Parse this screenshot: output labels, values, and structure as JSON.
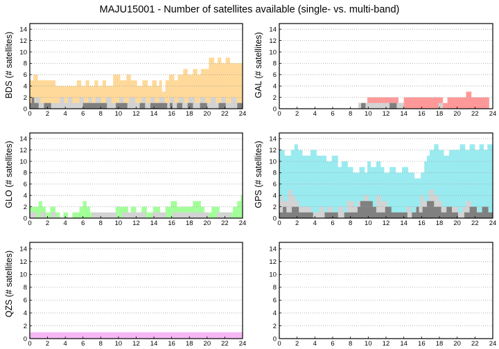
{
  "title": "MAJU15001 - Number of satellites available (single- vs. multi-band)",
  "chart_data": [
    {
      "id": "bds",
      "type": "area",
      "ylabel": "BDS (# satellites)",
      "xlim": [
        0,
        24
      ],
      "ylim": [
        0,
        15
      ],
      "x_ticks": [
        0,
        2,
        4,
        6,
        8,
        10,
        12,
        14,
        16,
        18,
        20,
        22,
        24
      ],
      "y_ticks": [
        0,
        2,
        4,
        6,
        8,
        10,
        12,
        14
      ],
      "grid": true,
      "colors": {
        "total": "#ffd999",
        "multi_band": "#d3d3d3",
        "single_band": "#808080"
      },
      "series": [
        {
          "key": "total",
          "x": [
            0,
            0.4,
            0.9,
            1.6,
            2.9,
            3.5,
            4.8,
            5.3,
            5.8,
            6.3,
            6.7,
            7.3,
            7.7,
            8.2,
            8.6,
            9.4,
            10.2,
            10.9,
            11.4,
            12.1,
            12.7,
            13.3,
            13.8,
            14.3,
            14.6,
            14.9,
            15.3,
            15.7,
            16.3,
            16.7,
            17.3,
            17.8,
            18.4,
            18.9,
            19.3,
            19.8,
            20.2,
            20.8,
            21.2,
            21.6,
            22.1,
            22.6,
            23.0,
            24
          ],
          "y": [
            5,
            6,
            5,
            5,
            4,
            4,
            4,
            5,
            4,
            5,
            4,
            5,
            4,
            5,
            4,
            6,
            5,
            6,
            5,
            4,
            5,
            4,
            5,
            4,
            5,
            3,
            5,
            6,
            5,
            6,
            7,
            6,
            7,
            6,
            7,
            7,
            9,
            8,
            9,
            8,
            9,
            8,
            8,
            8
          ]
        },
        {
          "key": "multi_band",
          "x": [
            0,
            0.6,
            1.2,
            2.0,
            3.4,
            3.9,
            4.3,
            4.8,
            5.6,
            6.1,
            6.6,
            7.0,
            7.4,
            8.0,
            8.6,
            9.2,
            10.1,
            10.6,
            11.2,
            11.9,
            12.6,
            13.1,
            13.6,
            14.1,
            14.6,
            15.2,
            15.8,
            16.3,
            16.8,
            17.4,
            17.9,
            18.6,
            19.2,
            19.8,
            20.4,
            21.0,
            21.6,
            22.1,
            22.7,
            23.3,
            24
          ],
          "y": [
            1,
            2,
            1,
            1,
            2,
            1,
            2,
            1,
            2,
            1,
            2,
            1,
            2,
            1,
            2,
            1,
            2,
            1,
            2,
            1,
            2,
            1,
            2,
            1,
            2,
            1,
            2,
            1,
            2,
            1,
            2,
            1,
            2,
            1,
            2,
            1,
            2,
            1,
            2,
            1,
            1
          ]
        },
        {
          "key": "single_band",
          "x": [
            0,
            0.2,
            0.5,
            1.0,
            1.6,
            2.4,
            4.6,
            6.0,
            8.7,
            9.7,
            11.0,
            12.4,
            13.0,
            13.6,
            15.5,
            15.8,
            16.1,
            16.6,
            17.2,
            17.8,
            18.4,
            19.2,
            20.0,
            21.3,
            22.1,
            23.4,
            24
          ],
          "y": [
            1,
            2,
            1,
            0,
            1,
            0,
            0,
            1,
            0,
            1,
            0,
            1,
            0,
            1,
            0,
            1,
            0,
            1,
            0,
            1,
            0,
            1,
            0,
            1,
            0,
            1,
            1
          ]
        }
      ]
    },
    {
      "id": "gal",
      "type": "area",
      "ylabel": "GAL (# satellites)",
      "xlim": [
        0,
        24
      ],
      "ylim": [
        0,
        15
      ],
      "x_ticks": [
        0,
        2,
        4,
        6,
        8,
        10,
        12,
        14,
        16,
        18,
        20,
        22,
        24
      ],
      "y_ticks": [
        0,
        2,
        4,
        6,
        8,
        10,
        12,
        14
      ],
      "grid": true,
      "colors": {
        "total": "#ff9999",
        "multi_band": "#d3d3d3",
        "single_band": "#808080"
      },
      "series": [
        {
          "key": "total",
          "x": [
            8.9,
            9.3,
            9.9,
            13.4,
            14.0,
            18.4,
            18.9,
            21.0,
            21.6,
            23.6
          ],
          "y": [
            1,
            1,
            2,
            1,
            2,
            1,
            2,
            3,
            2,
            0
          ]
        },
        {
          "key": "multi_band",
          "x": [
            8.9,
            9.5,
            13.4,
            14.0,
            17.9,
            18.4,
            18.9,
            23.6
          ],
          "y": [
            1,
            1,
            1,
            0,
            1,
            0,
            0,
            0
          ]
        },
        {
          "key": "single_band",
          "x": [
            9.2,
            9.7,
            12.4,
            13.2,
            23.6
          ],
          "y": [
            1,
            0,
            1,
            0,
            0
          ]
        }
      ]
    },
    {
      "id": "glo",
      "type": "area",
      "ylabel": "GLO (# satellites)",
      "xlim": [
        0,
        24
      ],
      "ylim": [
        0,
        15
      ],
      "x_ticks": [
        0,
        2,
        4,
        6,
        8,
        10,
        12,
        14,
        16,
        18,
        20,
        22,
        24
      ],
      "y_ticks": [
        0,
        2,
        4,
        6,
        8,
        10,
        12,
        14
      ],
      "grid": true,
      "colors": {
        "total": "#a3ff99",
        "multi_band": "#d3d3d3",
        "single_band": "#808080"
      },
      "series": [
        {
          "key": "total",
          "x": [
            0,
            1.0,
            1.4,
            1.8,
            2.3,
            2.9,
            3.4,
            3.8,
            4.3,
            4.8,
            5.6,
            6.0,
            6.4,
            6.8,
            7.5,
            8.2,
            8.6,
            9.7,
            11.1,
            11.4,
            12.0,
            12.6,
            13.2,
            13.9,
            14.7,
            15.3,
            15.9,
            16.6,
            18.4,
            19.3,
            19.7,
            20.5,
            21.4,
            22.9,
            23.4,
            23.8,
            24
          ],
          "y": [
            2,
            3,
            2,
            1,
            2,
            1,
            0,
            1,
            0,
            1,
            2,
            3,
            2,
            1,
            0,
            1,
            0,
            2,
            1,
            2,
            1,
            2,
            1,
            2,
            1,
            2,
            3,
            2,
            3,
            2,
            1,
            2,
            1,
            2,
            3,
            4,
            3
          ]
        },
        {
          "key": "multi_band",
          "x": [
            0,
            0.8,
            1.2,
            1.8,
            2.4,
            3.0,
            3.6,
            6.4,
            7.0,
            9.8,
            10.4,
            13.1,
            13.8,
            15.4,
            16.1,
            20.2,
            21.1,
            22.7,
            24
          ],
          "y": [
            1,
            0,
            1,
            0,
            1,
            0,
            0,
            0,
            1,
            0,
            1,
            0,
            1,
            0,
            1,
            0,
            1,
            0,
            0
          ]
        },
        {
          "key": "single_band",
          "x": [
            0
          ],
          "y": [
            0
          ]
        }
      ]
    },
    {
      "id": "gps",
      "type": "area",
      "ylabel": "GPS (# satellites)",
      "xlim": [
        0,
        24
      ],
      "ylim": [
        0,
        15
      ],
      "x_ticks": [
        0,
        2,
        4,
        6,
        8,
        10,
        12,
        14,
        16,
        18,
        20,
        22,
        24
      ],
      "y_ticks": [
        0,
        2,
        4,
        6,
        8,
        10,
        12,
        14
      ],
      "grid": true,
      "colors": {
        "total": "#99ebf0",
        "multi_band": "#d3d3d3",
        "single_band": "#808080"
      },
      "series": [
        {
          "key": "total",
          "x": [
            0,
            0.6,
            1.3,
            1.7,
            2.1,
            2.6,
            3.5,
            4.2,
            4.8,
            5.3,
            5.9,
            6.6,
            7.0,
            7.7,
            8.3,
            9.0,
            9.6,
            9.9,
            10.3,
            10.9,
            11.4,
            11.8,
            12.4,
            13.1,
            13.8,
            14.5,
            15.2,
            15.9,
            16.3,
            16.6,
            16.9,
            17.4,
            17.9,
            18.5,
            19.1,
            19.8,
            20.3,
            20.9,
            21.4,
            22.0,
            22.5,
            23.0,
            23.4,
            24
          ],
          "y": [
            12,
            11,
            12,
            13,
            12,
            11,
            12,
            11,
            11,
            10,
            11,
            9,
            10,
            9,
            8,
            9,
            8,
            10,
            9,
            10,
            9,
            8,
            9,
            8,
            9,
            8,
            7,
            8,
            10,
            11,
            12,
            13,
            12,
            11,
            12,
            12,
            13,
            12,
            13,
            12,
            13,
            12,
            13,
            13
          ]
        },
        {
          "key": "multi_band",
          "x": [
            0,
            0.2,
            0.5,
            1.0,
            1.4,
            1.8,
            2.2,
            3.6,
            4.5,
            5.0,
            5.4,
            6.0,
            6.6,
            7.2,
            7.6,
            8.4,
            8.8,
            9.5,
            10.0,
            10.4,
            10.9,
            11.4,
            12.1,
            12.6,
            13.4,
            14.3,
            14.8,
            15.3,
            15.8,
            16.2,
            16.8,
            17.4,
            17.9,
            18.3,
            18.8,
            19.4,
            20.1,
            20.6,
            21.0,
            21.6,
            22.3,
            22.9,
            23.4,
            24
          ],
          "y": [
            3,
            4,
            3,
            5,
            4,
            3,
            2,
            1,
            2,
            1,
            2,
            1,
            2,
            1,
            3,
            2,
            3,
            4,
            3,
            2,
            4,
            3,
            2,
            1,
            1,
            2,
            1,
            2,
            4,
            3,
            5,
            4,
            3,
            2,
            1,
            2,
            1,
            2,
            3,
            2,
            1,
            2,
            1,
            1
          ]
        },
        {
          "key": "single_band",
          "x": [
            0,
            0.4,
            0.8,
            1.4,
            2.2,
            3.8,
            5.1,
            6.6,
            7.3,
            8.8,
            9.1,
            10.5,
            10.9,
            11.9,
            12.6,
            14.4,
            14.9,
            15.4,
            15.7,
            16.1,
            16.6,
            17.4,
            18.2,
            18.8,
            19.4,
            20.1,
            20.8,
            21.4,
            22.2,
            22.8,
            23.5,
            24
          ],
          "y": [
            1,
            2,
            1,
            2,
            1,
            0,
            1,
            0,
            1,
            2,
            3,
            2,
            1,
            2,
            1,
            0,
            1,
            2,
            1,
            2,
            3,
            2,
            1,
            2,
            1,
            0,
            1,
            2,
            1,
            2,
            1,
            1
          ]
        }
      ]
    },
    {
      "id": "qzs",
      "type": "area",
      "ylabel": "QZS (# satellites)",
      "xlim": [
        0,
        24
      ],
      "ylim": [
        0,
        15
      ],
      "x_ticks": [
        0,
        2,
        4,
        6,
        8,
        10,
        12,
        14,
        16,
        18,
        20,
        22,
        24
      ],
      "y_ticks": [
        0,
        2,
        4,
        6,
        8,
        10,
        12,
        14
      ],
      "grid": true,
      "colors": {
        "total": "#f5b8f5",
        "multi_band": "#d3d3d3",
        "single_band": "#808080"
      },
      "series": [
        {
          "key": "total",
          "x": [
            0,
            24
          ],
          "y": [
            1,
            1
          ]
        },
        {
          "key": "multi_band",
          "x": [
            0
          ],
          "y": [
            0
          ]
        },
        {
          "key": "single_band",
          "x": [
            0
          ],
          "y": [
            0
          ]
        }
      ]
    },
    {
      "id": "empty",
      "type": "area",
      "ylabel": "",
      "xlim": [
        0,
        24
      ],
      "ylim": [
        0,
        15
      ],
      "x_ticks": [
        0,
        2,
        4,
        6,
        8,
        10,
        12,
        14,
        16,
        18,
        20,
        22,
        24
      ],
      "y_ticks": [
        0,
        2,
        4,
        6,
        8,
        10,
        12,
        14
      ],
      "grid": true,
      "colors": {
        "total": "#ffffff",
        "multi_band": "#d3d3d3",
        "single_band": "#808080"
      },
      "series": []
    }
  ]
}
